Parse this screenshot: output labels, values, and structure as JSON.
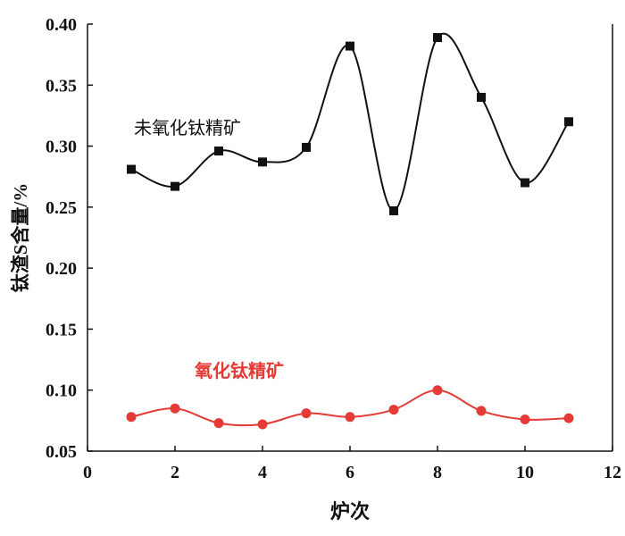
{
  "chart_data": {
    "type": "line",
    "title": "",
    "xlabel": "炉次",
    "ylabel": "钛渣S含量/%",
    "xlim": [
      0,
      12
    ],
    "ylim": [
      0.05,
      0.4
    ],
    "xticks": [
      "0",
      "2",
      "4",
      "6",
      "8",
      "10",
      "12"
    ],
    "yticks": [
      "0.05",
      "0.10",
      "0.15",
      "0.20",
      "0.25",
      "0.30",
      "0.35",
      "0.40"
    ],
    "grid": false,
    "x": [
      1,
      2,
      3,
      4,
      5,
      6,
      7,
      8,
      9,
      10,
      11
    ],
    "series": [
      {
        "name": "未氧化钛精矿",
        "color": "#111111",
        "marker": "square",
        "values": [
          0.281,
          0.267,
          0.296,
          0.287,
          0.299,
          0.382,
          0.247,
          0.389,
          0.34,
          0.27,
          0.32
        ]
      },
      {
        "name": "氧化钛精矿",
        "color": "#e53a35",
        "marker": "circle",
        "values": [
          0.078,
          0.085,
          0.073,
          0.072,
          0.081,
          0.078,
          0.084,
          0.1,
          0.083,
          0.076,
          0.077
        ]
      }
    ]
  }
}
